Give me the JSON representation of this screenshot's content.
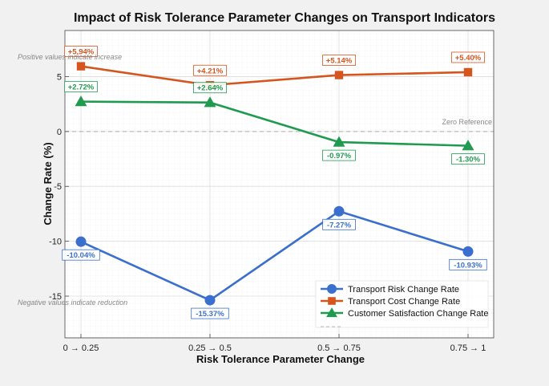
{
  "chart_data": {
    "type": "line",
    "title": "Impact of Risk Tolerance Parameter Changes on Transport Indicators",
    "xlabel": "Risk Tolerance Parameter Change",
    "ylabel": "Change Rate (%)",
    "categories": [
      "0 → 0.25",
      "0.25 → 0.5",
      "0.5 → 0.75",
      "0.75 → 1"
    ],
    "ylim": [
      -18.8,
      9.2
    ],
    "yticks": [
      5,
      0,
      -5,
      -10,
      -15
    ],
    "grid": true,
    "legend_position": "bottom-right",
    "series": [
      {
        "name": "Transport Risk Change Rate",
        "values": [
          -10.04,
          -15.37,
          -7.27,
          -10.93
        ],
        "labels": [
          "-10.04%",
          "-15.37%",
          "-7.27%",
          "-10.93%"
        ],
        "color": "#3a6fcf",
        "marker": "circle"
      },
      {
        "name": "Transport Cost Change Rate",
        "values": [
          5.94,
          4.21,
          5.14,
          5.4
        ],
        "labels": [
          "+5.94%",
          "+4.21%",
          "+5.14%",
          "+5.40%"
        ],
        "color": "#d6541e",
        "marker": "square"
      },
      {
        "name": "Customer Satisfaction Change Rate",
        "values": [
          2.72,
          2.64,
          -0.97,
          -1.3
        ],
        "labels": [
          "+2.72%",
          "+2.64%",
          "-0.97%",
          "-1.30%"
        ],
        "color": "#1f9a4f",
        "marker": "triangle"
      }
    ],
    "reference_line": {
      "value": 0,
      "label": "Zero Reference"
    },
    "annotations": {
      "positive": "Positive values indicate increase",
      "negative": "Negative values indicate reduction"
    }
  }
}
